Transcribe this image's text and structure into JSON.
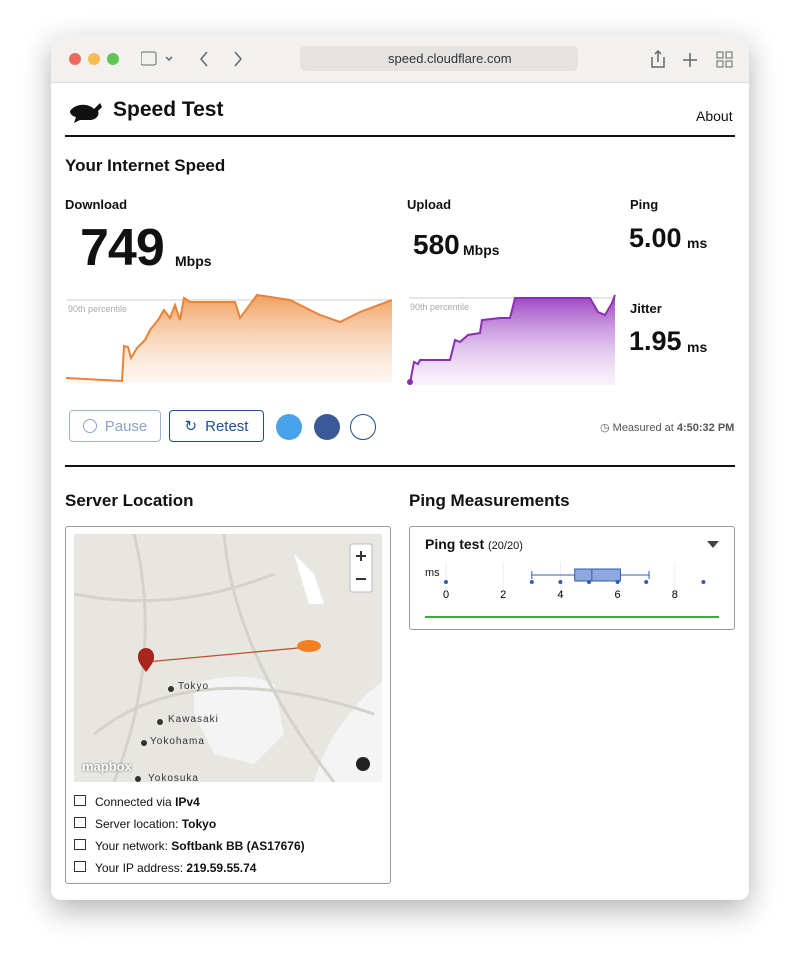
{
  "browser": {
    "url": "speed.cloudflare.com"
  },
  "header": {
    "title": "Speed Test",
    "nav": "About"
  },
  "speed": {
    "title": "Your Internet Speed",
    "download": {
      "label": "Download",
      "value": "749",
      "unit": "Mbps",
      "percentile": "90th percentile"
    },
    "upload": {
      "label": "Upload",
      "value": "580",
      "unit": "Mbps",
      "percentile": "90th percentile"
    },
    "ping": {
      "label": "Ping",
      "value": "5.00",
      "unit": "ms"
    },
    "jitter": {
      "label": "Jitter",
      "value": "1.95",
      "unit": "ms"
    },
    "buttons": {
      "pause": "Pause",
      "retest": "Retest"
    },
    "measured": {
      "label": "Measured at",
      "time": "4:50:32 PM"
    }
  },
  "server": {
    "title": "Server Location",
    "map": {
      "places": [
        "Tokyo",
        "Kawasaki",
        "Yokohama",
        "Yokosuka"
      ],
      "attribution": "mapbox"
    },
    "info": [
      {
        "label": "Connected via",
        "value": "IPv4"
      },
      {
        "label": "Server location:",
        "value": "Tokyo"
      },
      {
        "label": "Your network:",
        "value": "Softbank BB (AS17676)"
      },
      {
        "label": "Your IP address:",
        "value": "219.59.55.74"
      }
    ]
  },
  "ping_measurements": {
    "title": "Ping Measurements",
    "card_title": "Ping test",
    "count": "(20/20)",
    "unit": "ms",
    "xlim": [
      0,
      9.5
    ],
    "xticks": [
      0,
      2,
      4,
      6,
      8
    ],
    "box": {
      "low": 3,
      "q1": 4.5,
      "median": 5.1,
      "q3": 6.1,
      "high": 7.1
    },
    "points": [
      0,
      3,
      4,
      5,
      6,
      7,
      9
    ]
  }
}
